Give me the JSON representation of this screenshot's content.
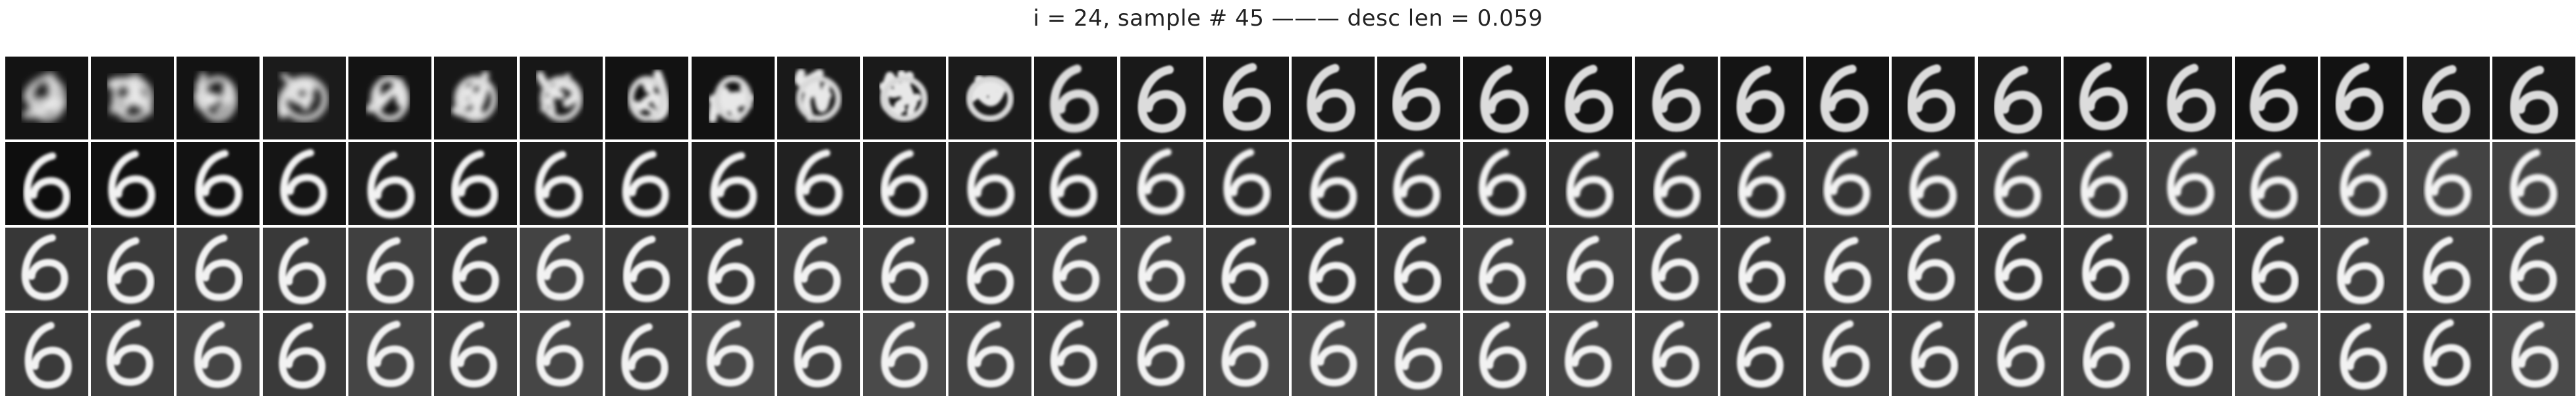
{
  "figure": {
    "title": "i = 24, sample # 45 ——— desc len = 0.059"
  },
  "grid": {
    "rows": 4,
    "cols": 30,
    "digit": "6",
    "row_stages": [
      "early noisy blob reconstructions converging to a blurry six",
      "dark-background sixes sharpening",
      "grey-background sixes",
      "grey-background sixes, most refined"
    ]
  }
}
